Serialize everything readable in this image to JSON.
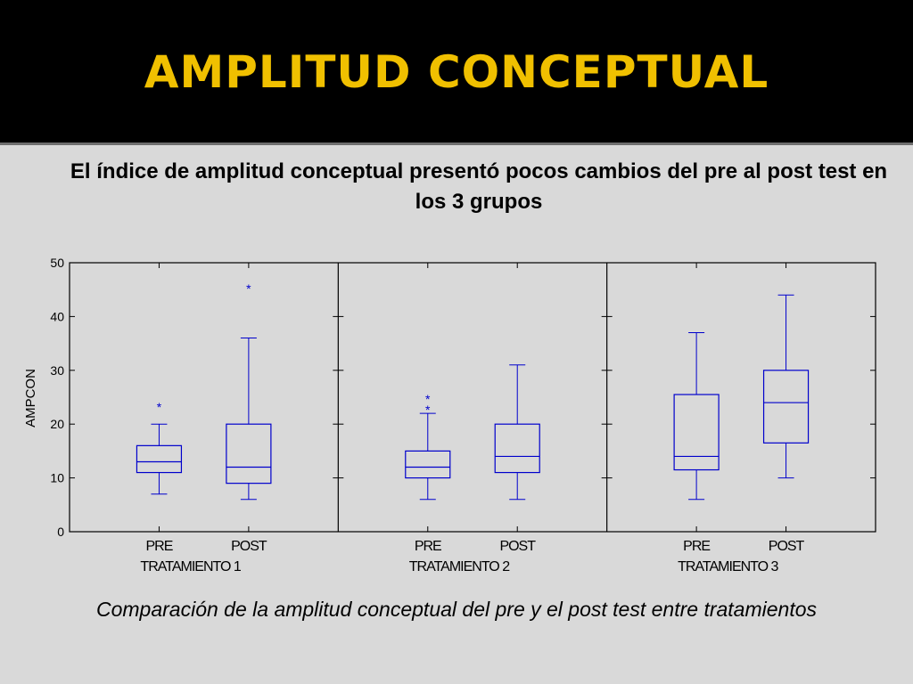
{
  "slide": {
    "title": "AMPLITUD CONCEPTUAL",
    "subtitle": "El índice de amplitud conceptual presentó pocos cambios del pre al post test en los 3 grupos",
    "caption": "Comparación de la amplitud conceptual del pre y el post test entre tratamientos"
  },
  "chart_data": {
    "type": "boxplot",
    "ylabel": "AMPCON",
    "ylim": [
      0,
      50
    ],
    "yticks": [
      0,
      10,
      20,
      30,
      40,
      50
    ],
    "grid": false,
    "box_color": "#0000cc",
    "panels": [
      {
        "label": "TRATAMIENTO 1",
        "boxes": [
          {
            "category": "PRE",
            "whisker_low": 7,
            "q1": 11,
            "median": 13,
            "q3": 16,
            "whisker_high": 20,
            "outliers": [
              23.5
            ]
          },
          {
            "category": "POST",
            "whisker_low": 6,
            "q1": 9,
            "median": 12,
            "q3": 20,
            "whisker_high": 36,
            "outliers": [
              45.5
            ]
          }
        ]
      },
      {
        "label": "TRATAMIENTO 2",
        "boxes": [
          {
            "category": "PRE",
            "whisker_low": 6,
            "q1": 10,
            "median": 12,
            "q3": 15,
            "whisker_high": 22,
            "outliers": [
              23,
              25
            ]
          },
          {
            "category": "POST",
            "whisker_low": 6,
            "q1": 11,
            "median": 14,
            "q3": 20,
            "whisker_high": 31,
            "outliers": []
          }
        ]
      },
      {
        "label": "TRATAMIENTO 3",
        "boxes": [
          {
            "category": "PRE",
            "whisker_low": 6,
            "q1": 11.5,
            "median": 14,
            "q3": 25.5,
            "whisker_high": 37,
            "outliers": []
          },
          {
            "category": "POST",
            "whisker_low": 10,
            "q1": 16.5,
            "median": 24,
            "q3": 30,
            "whisker_high": 44,
            "outliers": []
          }
        ]
      }
    ]
  }
}
